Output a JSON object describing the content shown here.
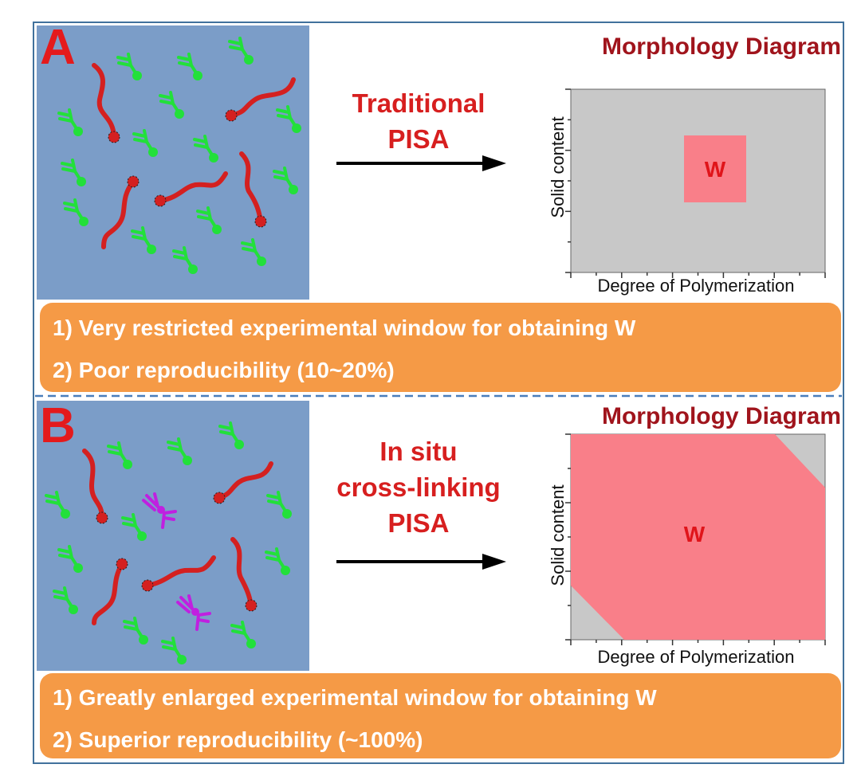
{
  "panel_a": {
    "letter": "A",
    "method_lines": [
      "Traditional",
      "PISA"
    ],
    "diagram_title": "Morphology Diagram",
    "y_axis_label": "Solid content",
    "x_axis_label": "Degree of Polymerization",
    "region_label": "W",
    "notes": [
      "1) Very restricted experimental window for obtaining W",
      "2) Poor reproducibility (10~20%)"
    ]
  },
  "panel_b": {
    "letter": "B",
    "method_lines": [
      "In situ",
      "cross-linking",
      "PISA"
    ],
    "diagram_title": "Morphology Diagram",
    "y_axis_label": "Solid content",
    "x_axis_label": "Degree of Polymerization",
    "region_label": "W",
    "notes": [
      "1) Greatly enlarged experimental window for obtaining W",
      "2) Superior reproducibility (~100%)"
    ]
  },
  "colors": {
    "background_panel": "#7b9dc8",
    "chain": "#d42020",
    "monomer": "#22e03a",
    "crosslinker": "#c020e0",
    "region_w": "#f97f89",
    "diagram_bg": "#c8c8c8",
    "note_box": "#f59a46"
  }
}
